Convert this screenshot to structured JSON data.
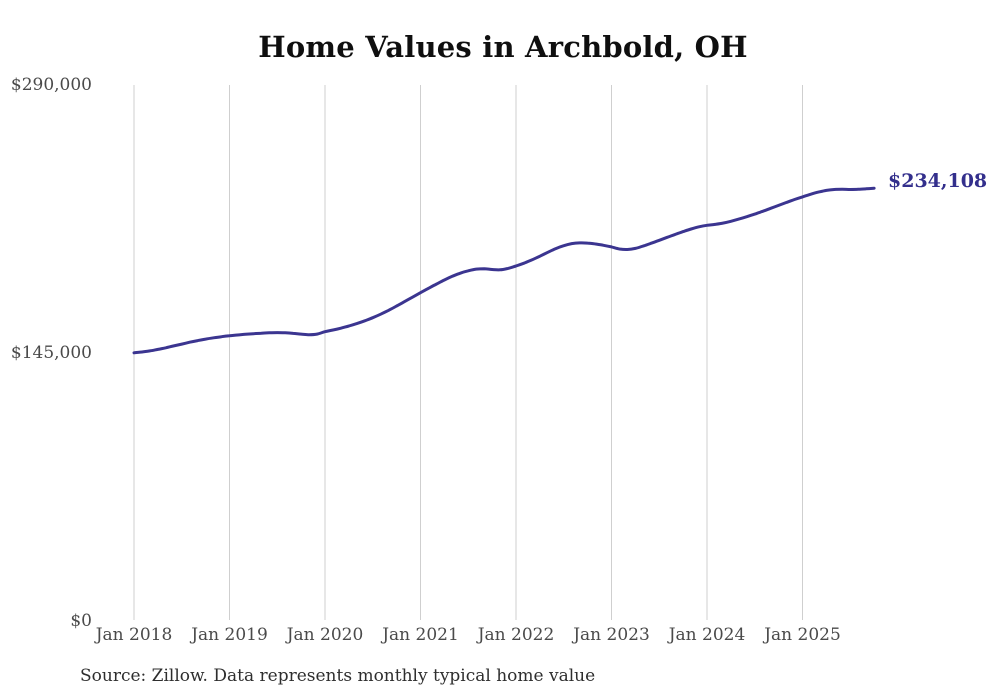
{
  "title": "Home Values in Archbold, OH",
  "source_note": "Source: Zillow. Data represents monthly typical home value",
  "end_label": "$234,108",
  "colors": {
    "line": "#3b3590",
    "end_label": "#332f8c",
    "gridline": "#cfcfcf",
    "tick_label": "#4a4a4a",
    "title": "#0f0f0f",
    "source": "#2e2e2e",
    "background": "#ffffff"
  },
  "chart_data": {
    "type": "line",
    "title": "Home Values in Archbold, OH",
    "series_name": "Typical home value",
    "x_tick_labels": [
      "Jan 2018",
      "Jan 2019",
      "Jan 2020",
      "Jan 2021",
      "Jan 2022",
      "Jan 2023",
      "Jan 2024",
      "Jan 2025"
    ],
    "y_tick_labels": [
      "$290,000",
      "$145,000",
      "$0"
    ],
    "ylim": [
      0,
      290000
    ],
    "grid": "vertical-only",
    "legend": "none",
    "last_value": 234108,
    "months": [
      "Jan 2018",
      "Feb 2018",
      "Mar 2018",
      "Apr 2018",
      "May 2018",
      "Jun 2018",
      "Jul 2018",
      "Aug 2018",
      "Sep 2018",
      "Oct 2018",
      "Nov 2018",
      "Dec 2018",
      "Jan 2019",
      "Feb 2019",
      "Mar 2019",
      "Apr 2019",
      "May 2019",
      "Jun 2019",
      "Jul 2019",
      "Aug 2019",
      "Sep 2019",
      "Oct 2019",
      "Nov 2019",
      "Dec 2019",
      "Jan 2020",
      "Feb 2020",
      "Mar 2020",
      "Apr 2020",
      "May 2020",
      "Jun 2020",
      "Jul 2020",
      "Aug 2020",
      "Sep 2020",
      "Oct 2020",
      "Nov 2020",
      "Dec 2020",
      "Jan 2021",
      "Feb 2021",
      "Mar 2021",
      "Apr 2021",
      "May 2021",
      "Jun 2021",
      "Jul 2021",
      "Aug 2021",
      "Sep 2021",
      "Oct 2021",
      "Nov 2021",
      "Dec 2021",
      "Jan 2022",
      "Feb 2022",
      "Mar 2022",
      "Apr 2022",
      "May 2022",
      "Jun 2022",
      "Jul 2022",
      "Aug 2022",
      "Sep 2022",
      "Oct 2022",
      "Nov 2022",
      "Dec 2022",
      "Jan 2023",
      "Feb 2023",
      "Mar 2023",
      "Apr 2023",
      "May 2023",
      "Jun 2023",
      "Jul 2023",
      "Aug 2023",
      "Sep 2023",
      "Oct 2023",
      "Nov 2023",
      "Dec 2023",
      "Jan 2024",
      "Feb 2024",
      "Mar 2024",
      "Apr 2024",
      "May 2024",
      "Jun 2024",
      "Jul 2024",
      "Aug 2024",
      "Sep 2024",
      "Oct 2024",
      "Nov 2024",
      "Dec 2024",
      "Jan 2025",
      "Feb 2025",
      "Mar 2025",
      "Apr 2025",
      "May 2025",
      "Jun 2025",
      "Jul 2025",
      "Aug 2025",
      "Sep 2025",
      "Oct 2025"
    ],
    "values": [
      145000,
      145400,
      146000,
      146800,
      147700,
      148700,
      149700,
      150700,
      151600,
      152400,
      153100,
      153700,
      154200,
      154600,
      155000,
      155300,
      155600,
      155800,
      155900,
      155800,
      155500,
      155100,
      154800,
      155100,
      156400,
      157300,
      158300,
      159500,
      160800,
      162300,
      164000,
      165900,
      168000,
      170300,
      172700,
      175100,
      177500,
      179900,
      182200,
      184400,
      186400,
      188100,
      189400,
      190300,
      190500,
      190100,
      189900,
      190700,
      192000,
      193500,
      195300,
      197300,
      199400,
      201400,
      203000,
      204100,
      204500,
      204400,
      203900,
      203200,
      202300,
      201200,
      200900,
      201500,
      202800,
      204300,
      205900,
      207500,
      209100,
      210600,
      212000,
      213200,
      214000,
      214500,
      215200,
      216200,
      217400,
      218700,
      220100,
      221600,
      223200,
      224800,
      226400,
      228000,
      229400,
      230800,
      232000,
      232900,
      233400,
      233500,
      233400,
      233500,
      233800,
      234108
    ]
  }
}
